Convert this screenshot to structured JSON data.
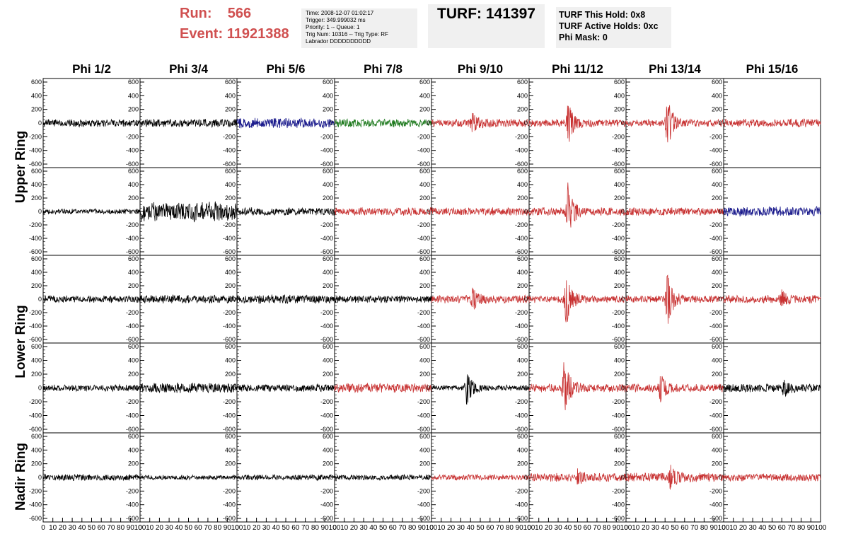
{
  "header": {
    "run_label": "Run:",
    "run_value": "566",
    "event_label": "Event:",
    "event_value": "11921388",
    "trigger_lines": [
      "Time: 2008-12-07 01:02:17",
      "Trigger: 349.999032 ms",
      "Priority: 1 -- Queue: 1",
      "Trig Num: 10316 -- Trig Type: RF",
      "Labrador DDDDDDDDDD"
    ],
    "turf": "TURF: 141397",
    "hold_lines": [
      "TURF This Hold: 0x8",
      "TURF Active Holds: 0xc",
      "Phi Mask: 0"
    ]
  },
  "phi_headers": [
    "Phi 1/2",
    "Phi 3/4",
    "Phi 5/6",
    "Phi 7/8",
    "Phi 9/10",
    "Phi 11/12",
    "Phi 13/14",
    "Phi 15/16"
  ],
  "ring_labels": [
    "Upper Ring",
    "Lower Ring",
    "Nadir Ring"
  ],
  "colors": {
    "black": "#000000",
    "blue": "#1a1a8c",
    "green": "#1e7a1e",
    "red": "#c83232",
    "header_red": "#d05050",
    "box_grey": "#f0f0f0"
  },
  "chart_data": {
    "type": "line",
    "description_units": {
      "x": "time samples",
      "y": "amplitude"
    },
    "xlim": [
      0,
      100
    ],
    "ylim": [
      -600,
      600
    ],
    "x_ticks": [
      "0",
      "10",
      "20",
      "30",
      "40",
      "50",
      "60",
      "70",
      "80",
      "90",
      "100"
    ],
    "y_ticks": [
      "600",
      "400",
      "200",
      "0",
      "-200",
      "-400",
      "-600"
    ],
    "rows": [
      {
        "cells": [
          {
            "color": "black",
            "noise": 40,
            "pulses": []
          },
          {
            "color": "black",
            "noise": 45,
            "pulses": []
          },
          {
            "color": "blue",
            "noise": 55,
            "pulses": []
          },
          {
            "color": "green",
            "noise": 45,
            "pulses": []
          },
          {
            "color": "red",
            "noise": 45,
            "pulses": [
              {
                "center": 42,
                "amp": 120
              }
            ]
          },
          {
            "color": "red",
            "noise": 40,
            "pulses": [
              {
                "center": 40,
                "amp": 300
              }
            ]
          },
          {
            "color": "red",
            "noise": 40,
            "pulses": [
              {
                "center": 42,
                "amp": 380
              }
            ]
          },
          {
            "color": "red",
            "noise": 45,
            "pulses": []
          }
        ]
      },
      {
        "cells": [
          {
            "color": "black",
            "noise": 30,
            "pulses": []
          },
          {
            "color": "black",
            "noise": 110,
            "pulses": []
          },
          {
            "color": "black",
            "noise": 45,
            "pulses": []
          },
          {
            "color": "red",
            "noise": 45,
            "pulses": []
          },
          {
            "color": "red",
            "noise": 45,
            "pulses": []
          },
          {
            "color": "red",
            "noise": 45,
            "pulses": [
              {
                "center": 40,
                "amp": 400
              }
            ]
          },
          {
            "color": "red",
            "noise": 45,
            "pulses": []
          },
          {
            "color": "blue",
            "noise": 55,
            "pulses": []
          }
        ]
      },
      {
        "cells": [
          {
            "color": "black",
            "noise": 40,
            "pulses": []
          },
          {
            "color": "black",
            "noise": 45,
            "pulses": []
          },
          {
            "color": "black",
            "noise": 50,
            "pulses": []
          },
          {
            "color": "black",
            "noise": 40,
            "pulses": []
          },
          {
            "color": "red",
            "noise": 45,
            "pulses": [
              {
                "center": 42,
                "amp": 140
              }
            ]
          },
          {
            "color": "red",
            "noise": 40,
            "pulses": [
              {
                "center": 38,
                "amp": 420
              }
            ]
          },
          {
            "color": "red",
            "noise": 40,
            "pulses": [
              {
                "center": 42,
                "amp": 400
              }
            ]
          },
          {
            "color": "red",
            "noise": 45,
            "pulses": [
              {
                "center": 60,
                "amp": 100
              }
            ]
          }
        ]
      },
      {
        "cells": [
          {
            "color": "black",
            "noise": 35,
            "pulses": []
          },
          {
            "color": "black",
            "noise": 55,
            "pulses": []
          },
          {
            "color": "black",
            "noise": 40,
            "pulses": []
          },
          {
            "color": "red",
            "noise": 50,
            "pulses": []
          },
          {
            "color": "black",
            "noise": 30,
            "pulses": [
              {
                "center": 36,
                "amp": 240
              }
            ]
          },
          {
            "color": "red",
            "noise": 45,
            "pulses": [
              {
                "center": 36,
                "amp": 430
              }
            ]
          },
          {
            "color": "red",
            "noise": 45,
            "pulses": [
              {
                "center": 35,
                "amp": 180
              }
            ]
          },
          {
            "color": "black",
            "noise": 45,
            "pulses": [
              {
                "center": 62,
                "amp": 120
              }
            ]
          }
        ]
      },
      {
        "cells": [
          {
            "color": "black",
            "noise": 35,
            "pulses": []
          },
          {
            "color": "black",
            "noise": 25,
            "pulses": []
          },
          {
            "color": "black",
            "noise": 30,
            "pulses": []
          },
          {
            "color": "black",
            "noise": 30,
            "pulses": []
          },
          {
            "color": "red",
            "noise": 30,
            "pulses": []
          },
          {
            "color": "red",
            "noise": 45,
            "pulses": [
              {
                "center": 50,
                "amp": 100
              }
            ]
          },
          {
            "color": "red",
            "noise": 50,
            "pulses": [
              {
                "center": 45,
                "amp": 150
              }
            ]
          },
          {
            "color": "red",
            "noise": 40,
            "pulses": []
          }
        ]
      }
    ]
  }
}
